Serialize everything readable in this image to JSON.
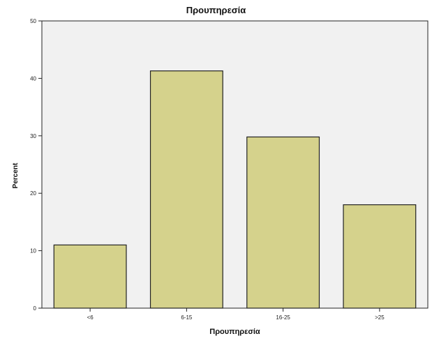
{
  "chart_data": {
    "type": "bar",
    "title": "Προυπηρεσία",
    "xlabel": "Προυπηρεσία",
    "ylabel": "Percent",
    "categories": [
      "<6",
      "6-15",
      "16-25",
      ">25"
    ],
    "values": [
      11,
      41.3,
      29.8,
      18
    ],
    "ylim": [
      0,
      50
    ],
    "yticks": [
      0,
      10,
      20,
      30,
      40,
      50
    ],
    "grid": false,
    "legend": "none",
    "colors": {
      "plot_background": "#f1f1f1",
      "bar_fill": "#d5d28c",
      "bar_stroke": "#222222",
      "axis": "#222222"
    }
  }
}
